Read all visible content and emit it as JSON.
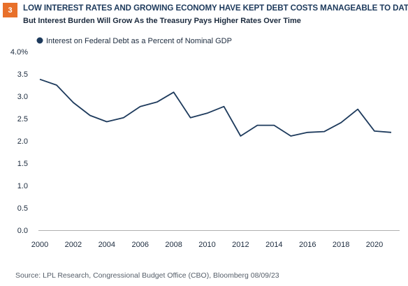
{
  "header": {
    "figure_number": "3",
    "title": "LOW INTEREST RATES AND GROWING ECONOMY HAVE KEPT DEBT COSTS MANAGEABLE TO DATE",
    "subtitle": "But Interest Burden Will Grow As the Treasury Pays Higher Rates Over Time"
  },
  "source": "Source: LPL Research, Congressional Budget Office (CBO), Bloomberg 08/09/23",
  "colors": {
    "badge": "#e8702a",
    "title": "#1d3a5c",
    "line": "#1d3a5c",
    "axis": "#b0b0b0"
  },
  "chart_data": {
    "type": "line",
    "title": "",
    "xlabel": "",
    "ylabel": "",
    "x": [
      2000,
      2001,
      2002,
      2003,
      2004,
      2005,
      2006,
      2007,
      2008,
      2009,
      2010,
      2011,
      2012,
      2013,
      2014,
      2015,
      2016,
      2017,
      2018,
      2019,
      2020,
      2021
    ],
    "series": [
      {
        "name": "Interest on Federal Debt as a Percent of Nominal GDP",
        "values": [
          3.38,
          3.25,
          2.86,
          2.57,
          2.43,
          2.52,
          2.77,
          2.87,
          3.09,
          2.52,
          2.62,
          2.77,
          2.11,
          2.35,
          2.35,
          2.11,
          2.19,
          2.21,
          2.41,
          2.71,
          2.22,
          2.19
        ]
      }
    ],
    "xlim": [
      2000,
      2021
    ],
    "ylim": [
      0,
      4
    ],
    "x_ticks": [
      2000,
      2002,
      2004,
      2006,
      2008,
      2010,
      2012,
      2014,
      2016,
      2018,
      2020
    ],
    "x_tick_labels": [
      "2000",
      "2002",
      "2004",
      "2006",
      "2008",
      "2010",
      "2012",
      "2014",
      "2016",
      "2018",
      "2020"
    ],
    "y_ticks": [
      0,
      0.5,
      1,
      1.5,
      2,
      2.5,
      3,
      3.5,
      4
    ],
    "y_tick_labels": [
      "0.0",
      "0.5",
      "1.0",
      "1.5",
      "2.0",
      "2.5",
      "3.0",
      "3.5",
      "4.0%"
    ],
    "grid": false,
    "legend_position": "top-left"
  }
}
